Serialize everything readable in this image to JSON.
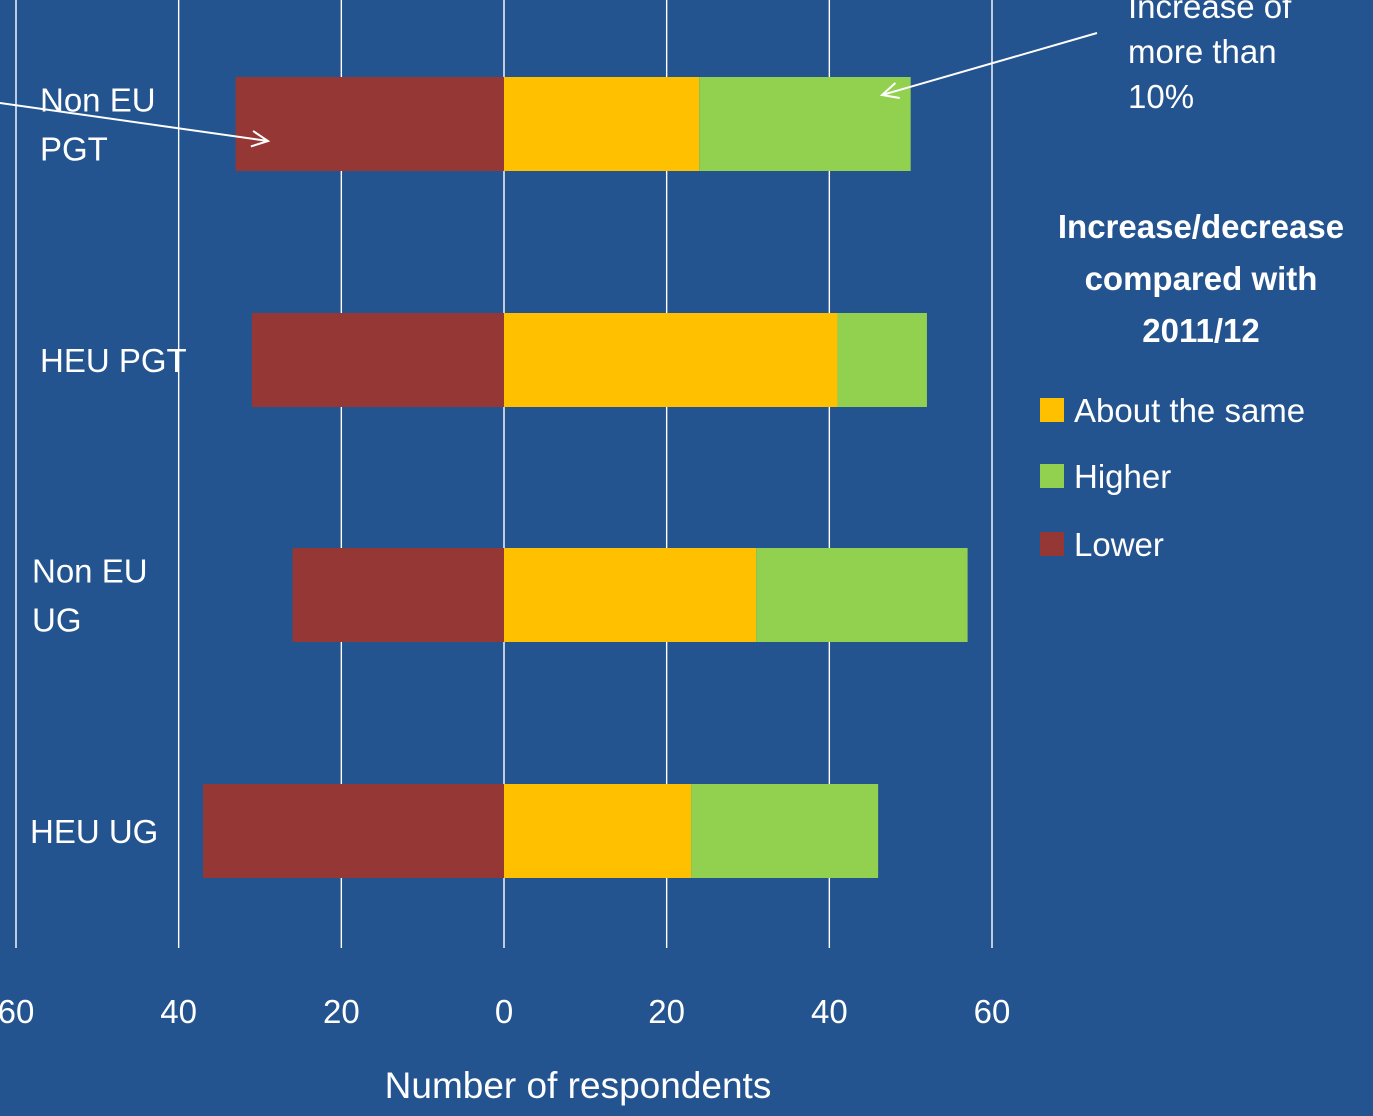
{
  "chart_data": {
    "type": "bar",
    "orientation": "horizontal",
    "stacked": "diverging",
    "title": "",
    "xlabel": "Number of respondents",
    "ylabel": "",
    "xlim": [
      -60,
      60
    ],
    "x_ticks": [
      -60,
      -40,
      -20,
      0,
      20,
      40,
      60
    ],
    "x_tick_labels": [
      "60",
      "40",
      "20",
      "0",
      "20",
      "40",
      "60"
    ],
    "grid": "vertical",
    "categories": [
      {
        "label_lines": [
          "Non EU",
          "PGT"
        ]
      },
      {
        "label_lines": [
          "HEU PGT"
        ]
      },
      {
        "label_lines": [
          "Non EU",
          "UG"
        ]
      },
      {
        "label_lines": [
          "HEU UG"
        ]
      }
    ],
    "series": [
      {
        "name": "About the same",
        "color": "#ffc000",
        "values": [
          24,
          41,
          31,
          23
        ]
      },
      {
        "name": "Higher",
        "color": "#92d050",
        "values": [
          26,
          11,
          26,
          23
        ]
      },
      {
        "name": "Lower",
        "color": "#953735",
        "values": [
          -33,
          -31,
          -26,
          -37
        ]
      }
    ],
    "legend": {
      "title_lines": [
        "Increase/decrease",
        "compared with",
        "2011/12"
      ],
      "position": "right"
    },
    "annotations": [
      {
        "text_lines": [
          "Increase of",
          "more than",
          "10%"
        ],
        "points_to": "Higher, Non EU PGT"
      },
      {
        "text_lines": [],
        "points_to": "Lower, Non EU PGT"
      }
    ]
  }
}
